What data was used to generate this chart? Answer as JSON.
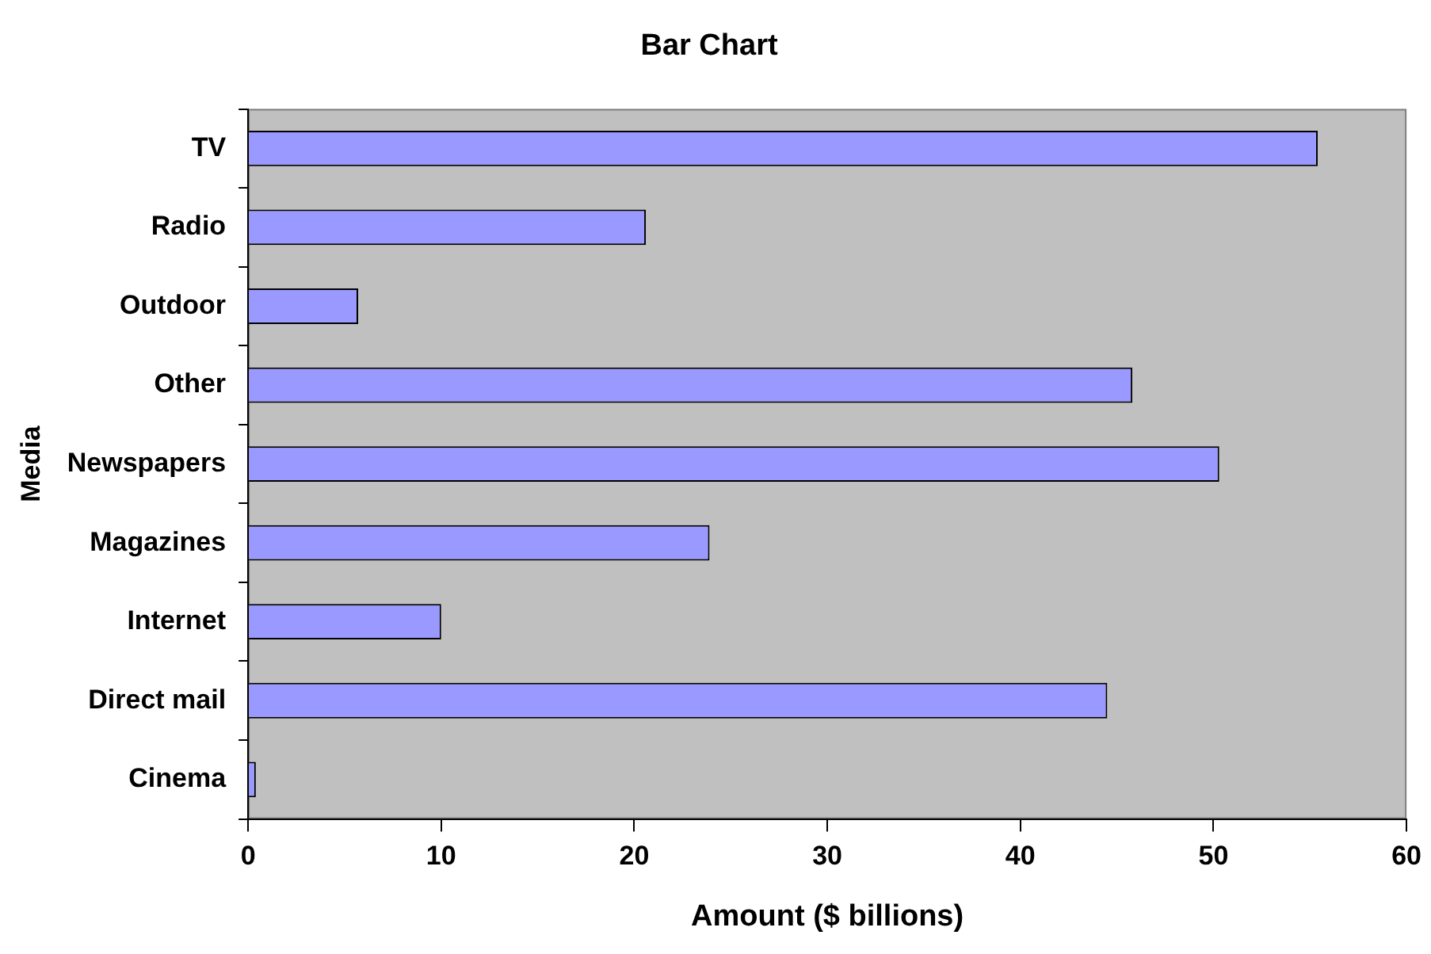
{
  "chart_data": {
    "type": "bar",
    "orientation": "horizontal",
    "title": "Bar Chart",
    "xlabel": "Amount ($ billions)",
    "ylabel": "Media",
    "categories": [
      "TV",
      "Radio",
      "Outdoor",
      "Other",
      "Newspapers",
      "Magazines",
      "Internet",
      "Direct mail",
      "Cinema"
    ],
    "values": [
      55.4,
      20.6,
      5.7,
      45.8,
      50.3,
      23.9,
      10.0,
      44.5,
      0.4
    ],
    "color": "#9999ff",
    "xlim": [
      0,
      60
    ],
    "xticks": [
      0,
      10,
      20,
      30,
      40,
      50,
      60
    ],
    "grid": false,
    "legend": false
  }
}
